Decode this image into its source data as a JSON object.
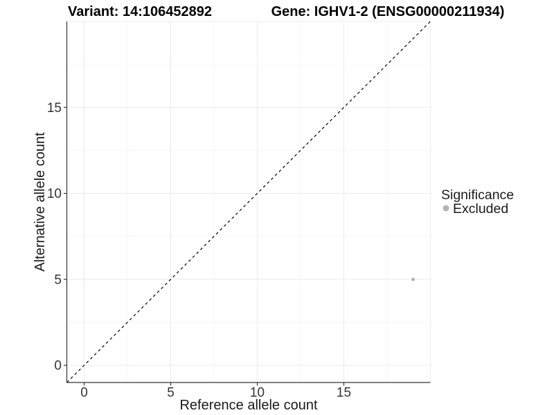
{
  "chart_data": {
    "type": "scatter",
    "title_left": "Variant: 14:106452892",
    "title_right": "Gene: IGHV1-2 (ENSG00000211934)",
    "xlabel": "Reference allele count",
    "ylabel": "Alternative allele count",
    "xlim": [
      -1,
      20
    ],
    "ylim": [
      -1,
      20
    ],
    "xticks": [
      0,
      5,
      10,
      15
    ],
    "yticks": [
      0,
      5,
      10,
      15
    ],
    "minor_tick_step": 2.5,
    "grid": "major+minor",
    "reference_line": {
      "type": "identity",
      "style": "dashed",
      "from": -1,
      "to": 20,
      "color": "#000000"
    },
    "series": [
      {
        "name": "Excluded",
        "color": "#b3b3b3",
        "marker": "circle",
        "points": [
          {
            "x": 19,
            "y": 5
          }
        ]
      }
    ],
    "legend": {
      "title": "Significance",
      "position": "right",
      "items": [
        {
          "label": "Excluded",
          "color": "#b3b3b3"
        }
      ]
    },
    "colors": {
      "grid_major": "#ebebeb",
      "grid_minor": "#f6f6f6",
      "axis": "#333333",
      "tick": "#333333"
    }
  }
}
